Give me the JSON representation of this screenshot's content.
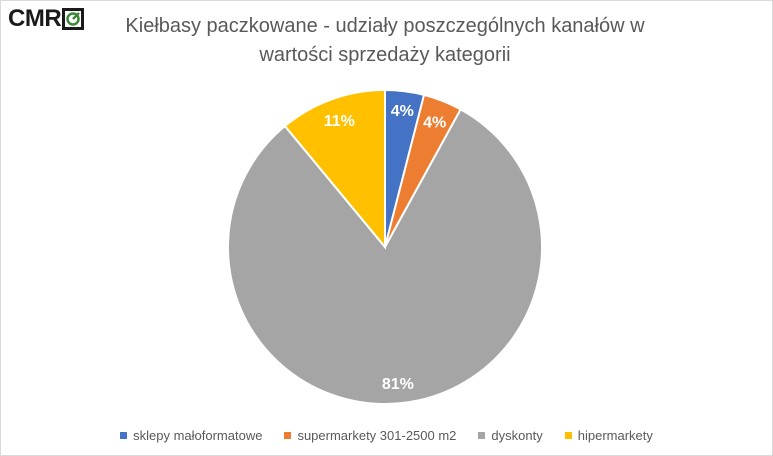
{
  "logo": {
    "text": "CMR"
  },
  "chart_data": {
    "type": "pie",
    "title": "Kiełbasy paczkowane - udziały poszczególnych kanałów w wartości sprzedaży kategorii",
    "title_lines": [
      "Kiełbasy paczkowane - udziały poszczególnych kanałów w",
      "wartości sprzedaży kategorii"
    ],
    "categories": [
      "sklepy małoformatowe",
      "supermarkety 301-2500 m2",
      "dyskonty",
      "hipermarkety"
    ],
    "values": [
      4,
      4,
      81,
      11
    ],
    "labels": [
      "4%",
      "4%",
      "81%",
      "11%"
    ],
    "colors": [
      "#4472c4",
      "#ed7d31",
      "#a5a5a5",
      "#ffc000"
    ],
    "legend_position": "bottom"
  }
}
